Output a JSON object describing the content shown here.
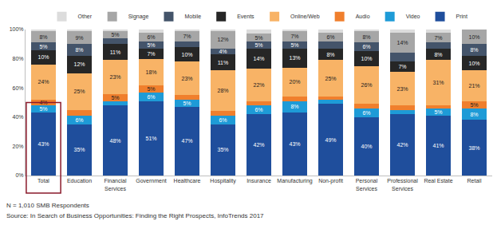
{
  "chart_data": {
    "type": "bar",
    "stacked": true,
    "data_labels": true,
    "grid": false,
    "legend": "top",
    "categories": [
      "Total",
      "Education",
      "Financial Services",
      "Government",
      "Healthcare",
      "Hospitality",
      "Insurance",
      "Manufacturing",
      "Non-profit",
      "Personal Services",
      "Professional Services",
      "Real Estate",
      "Retail"
    ],
    "ylim": [
      0,
      100
    ],
    "yticks": [
      {
        "value": 0,
        "label": "0%"
      },
      {
        "value": 20,
        "label": "20%"
      },
      {
        "value": 40,
        "label": "40%"
      },
      {
        "value": 60,
        "label": "60%"
      },
      {
        "value": 80,
        "label": "80%"
      },
      {
        "value": 100,
        "label": "100%"
      }
    ],
    "series": [
      {
        "name": "Print",
        "color": "#1f4e9c",
        "values": [
          43,
          35,
          48,
          51,
          47,
          35,
          42,
          43,
          49,
          40,
          42,
          41,
          38
        ],
        "value_labels": [
          "43%",
          "35%",
          "48%",
          "51%",
          "47%",
          "35%",
          "42%",
          "43%",
          "49%",
          "40%",
          "42%",
          "41%",
          "38%"
        ]
      },
      {
        "name": "Video",
        "color": "#1e9bd7",
        "values": [
          5,
          6,
          3,
          6,
          5,
          6,
          6,
          8,
          3,
          6,
          3,
          5,
          8
        ],
        "value_labels": [
          "5%",
          "6%",
          null,
          "6%",
          "5%",
          "6%",
          "6%",
          "8%",
          null,
          "6%",
          null,
          "5%",
          "8%"
        ]
      },
      {
        "name": "Audio",
        "color": "#f07f2d",
        "values": [
          4,
          4,
          5,
          5,
          3,
          3,
          3,
          3,
          2,
          3,
          3,
          2,
          5
        ],
        "value_labels": [
          "4%",
          null,
          "5%",
          "5%",
          null,
          null,
          null,
          null,
          null,
          null,
          null,
          null,
          "5%"
        ]
      },
      {
        "name": "Online/Web",
        "color": "#f8b366",
        "values": [
          24,
          25,
          23,
          18,
          23,
          28,
          22,
          20,
          25,
          26,
          23,
          31,
          21
        ],
        "value_labels": [
          "24%",
          "25%",
          "23%",
          "18%",
          "23%",
          "28%",
          "22%",
          "20%",
          "25%",
          "26%",
          "23%",
          "31%",
          "21%"
        ]
      },
      {
        "name": "Events",
        "color": "#262626",
        "values": [
          10,
          12,
          11,
          7,
          10,
          11,
          14,
          13,
          8,
          10,
          7,
          8,
          10
        ],
        "value_labels": [
          "10%",
          "12%",
          "11%",
          "7%",
          "10%",
          "11%",
          "14%",
          "13%",
          "8%",
          "10%",
          "7%",
          "8%",
          "10%"
        ]
      },
      {
        "name": "Mobile",
        "color": "#44546a",
        "values": [
          5,
          8,
          4,
          5,
          4,
          4,
          5,
          5,
          5,
          6,
          6,
          4,
          8
        ],
        "value_labels": [
          "5%",
          "8%",
          null,
          "5%",
          null,
          "4%",
          "5%",
          "5%",
          null,
          "6%",
          null,
          null,
          "8%"
        ]
      },
      {
        "name": "Signage",
        "color": "#a6a6a6",
        "values": [
          8,
          9,
          5,
          6,
          7,
          12,
          5,
          7,
          6,
          8,
          14,
          7,
          10
        ],
        "value_labels": [
          "8%",
          "9%",
          "5%",
          "6%",
          "7%",
          "12%",
          "5%",
          "7%",
          "6%",
          "8%",
          "14%",
          "7%",
          "10%"
        ]
      },
      {
        "name": "Other",
        "color": "#dcdcdc",
        "values": [
          1,
          1,
          1,
          2,
          1,
          1,
          3,
          1,
          2,
          1,
          2,
          2,
          0
        ]
      }
    ],
    "annotations": [
      "N = 1,010 SMB Respondents",
      "Source: In Search of Business Opportunities: Finding the Right Prospects, InfoTrends 2017"
    ]
  }
}
